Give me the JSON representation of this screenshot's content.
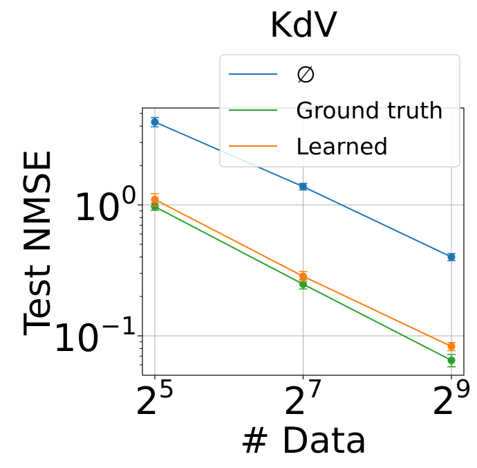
{
  "chart_data": {
    "type": "line",
    "title": "KdV",
    "xlabel": "# Data",
    "ylabel": "Test NMSE",
    "x_scale": "log2",
    "y_scale": "log10",
    "x": [
      32,
      128,
      512
    ],
    "x_ticks": [
      {
        "base": "2",
        "exp": "5"
      },
      {
        "base": "2",
        "exp": "7"
      },
      {
        "base": "2",
        "exp": "9"
      }
    ],
    "y_ticks": [
      {
        "value": 1,
        "base": "10",
        "exp": "0"
      },
      {
        "value": 0.1,
        "base": "10",
        "exp": "−1"
      }
    ],
    "xlim": [
      28.5,
      575
    ],
    "ylim": [
      0.05,
      5.5
    ],
    "grid": true,
    "legend_position": "top-right",
    "series": [
      {
        "name": "∅",
        "color": "#1f77b4",
        "values": [
          4.3,
          1.38,
          0.4
        ],
        "err": [
          0.35,
          0.08,
          0.025
        ]
      },
      {
        "name": "Ground truth",
        "color": "#2ca02c",
        "values": [
          0.97,
          0.248,
          0.065
        ],
        "err": [
          0.06,
          0.02,
          0.007
        ]
      },
      {
        "name": "Learned",
        "color": "#ff7f0e",
        "values": [
          1.1,
          0.285,
          0.083
        ],
        "err": [
          0.12,
          0.025,
          0.006
        ]
      }
    ]
  }
}
